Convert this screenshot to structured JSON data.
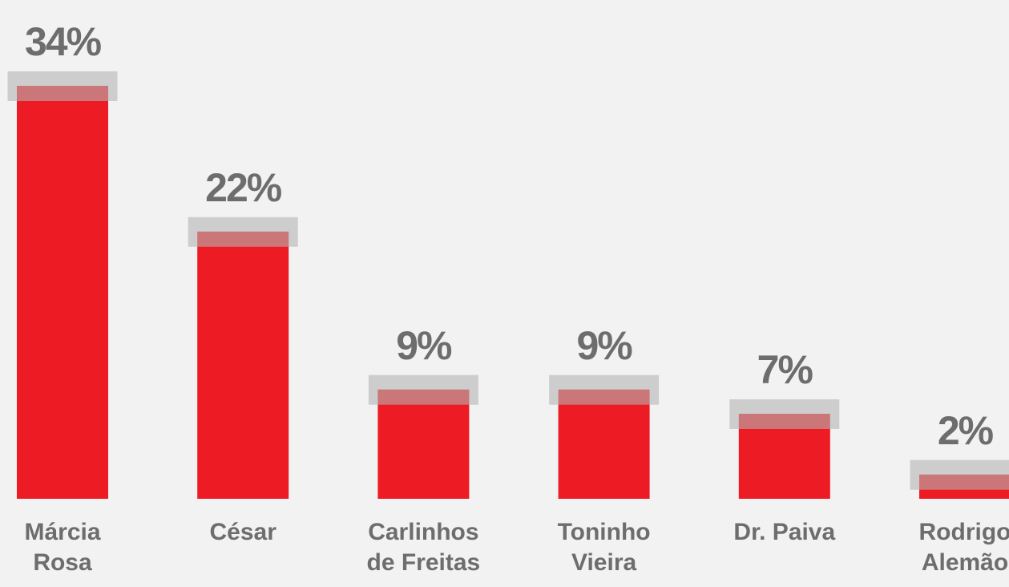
{
  "chart_data": {
    "type": "bar",
    "categories": [
      "Márcia Rosa",
      "César",
      "Carlinhos de Freitas",
      "Toninho Vieira",
      "Dr. Paiva",
      "Rodrigo Alemão"
    ],
    "values": [
      34,
      22,
      9,
      9,
      7,
      2
    ],
    "value_labels": [
      "34%",
      "22%",
      "9%",
      "9%",
      "7%",
      "2%"
    ],
    "color": "#ed1c24"
  }
}
